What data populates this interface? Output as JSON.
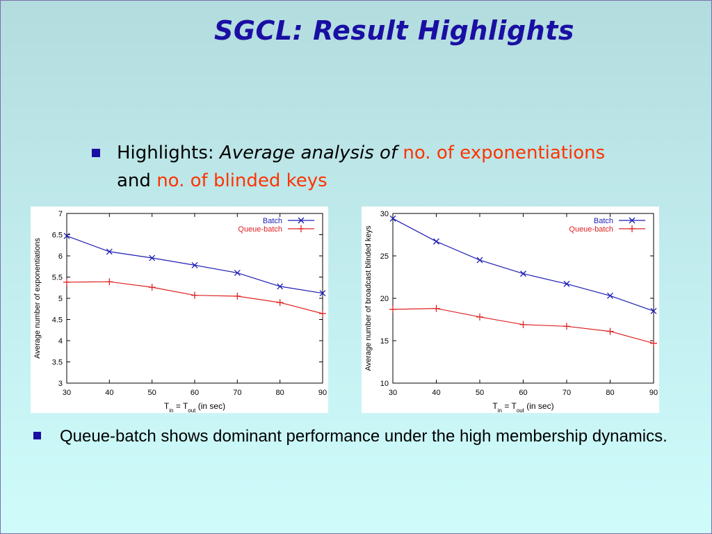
{
  "slide": {
    "title": "SGCL: Result Highlights",
    "highlight_prefix": "Highlights: ",
    "highlight_mid": "Average analysis of ",
    "highlight_red1": "no. of exponentiations",
    "highlight_and": " and ",
    "highlight_red2": "no. of blinded keys",
    "bottom_text": "Queue-batch shows dominant performance under the high membership dynamics."
  },
  "colors": {
    "title": "#1a0fa3",
    "batch": "#1c1cb4",
    "queue_batch": "#dd2222",
    "highlight": "#ff3300"
  },
  "chart_data": [
    {
      "type": "line",
      "xlabel_main": "T",
      "xlabel_sub_in": "in",
      "xlabel_eq": " = T",
      "xlabel_sub_out": "out",
      "xlabel_tail": " (in sec)",
      "ylabel": "Average number of exponentiations",
      "xlim": [
        30,
        90
      ],
      "ylim": [
        3,
        7
      ],
      "x_ticks": [
        "30",
        "40",
        "50",
        "60",
        "70",
        "80",
        "90"
      ],
      "y_ticks": [
        "3",
        "3.5",
        "4",
        "4.5",
        "5",
        "5.5",
        "6",
        "6.5",
        "7"
      ],
      "legend": "top-right",
      "x": [
        30,
        40,
        50,
        60,
        70,
        80,
        90
      ],
      "series": [
        {
          "name": "Batch",
          "marker": "x",
          "values": [
            6.47,
            6.1,
            5.95,
            5.78,
            5.6,
            5.28,
            5.12
          ]
        },
        {
          "name": "Queue-batch",
          "marker": "+",
          "values": [
            5.38,
            5.39,
            5.26,
            5.07,
            5.05,
            4.9,
            4.64
          ]
        }
      ]
    },
    {
      "type": "line",
      "xlabel_main": "T",
      "xlabel_sub_in": "in",
      "xlabel_eq": " = T",
      "xlabel_sub_out": "out",
      "xlabel_tail": " (in sec)",
      "ylabel": "Average number of broadcast blinded keys",
      "xlim": [
        30,
        90
      ],
      "ylim": [
        10,
        30
      ],
      "x_ticks": [
        "30",
        "40",
        "50",
        "60",
        "70",
        "80",
        "90"
      ],
      "y_ticks": [
        "10",
        "15",
        "20",
        "25",
        "30"
      ],
      "legend": "top-right",
      "x": [
        30,
        40,
        50,
        60,
        70,
        80,
        90
      ],
      "series": [
        {
          "name": "Batch",
          "marker": "x",
          "values": [
            29.4,
            26.7,
            24.5,
            22.9,
            21.7,
            20.3,
            18.5
          ]
        },
        {
          "name": "Queue-batch",
          "marker": "+",
          "values": [
            18.7,
            18.8,
            17.8,
            16.9,
            16.7,
            16.1,
            14.7
          ]
        }
      ]
    }
  ]
}
